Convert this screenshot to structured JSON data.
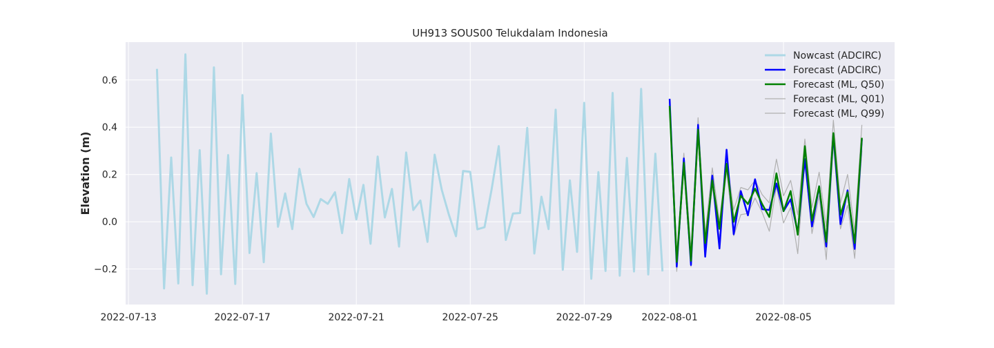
{
  "chart_data": {
    "type": "line",
    "title": "UH913 SOUS00 Telukdalam Indonesia",
    "ylabel": "Elevation (m)",
    "xlabel": "",
    "xlim": [
      "2022-07-13",
      "2022-08-09"
    ],
    "ylim": [
      -0.35,
      0.76
    ],
    "grid": true,
    "legend_position": "top-right",
    "x_ticks": [
      "2022-07-13",
      "2022-07-17",
      "2022-07-21",
      "2022-07-25",
      "2022-07-29",
      "2022-08-01",
      "2022-08-05"
    ],
    "y_ticks": [
      -0.2,
      0.0,
      0.2,
      0.4,
      0.6
    ],
    "y_tick_labels": [
      "−0.2",
      "0.0",
      "0.2",
      "0.4",
      "0.6"
    ],
    "colors": {
      "background": "#eaeaf2",
      "grid": "#ffffff",
      "nowcast": "#add8e6",
      "forecast_adcirc": "#0000ff",
      "forecast_ml_q50": "#008000",
      "forecast_ml_q01": "#b0b0b0",
      "forecast_ml_q99": "#b0b0b0"
    },
    "series": [
      {
        "name": "Nowcast (ADCIRC)",
        "points": [
          [
            "2022-07-14 00:00",
            0.647
          ],
          [
            "2022-07-14 06:00",
            -0.282
          ],
          [
            "2022-07-14 12:00",
            0.272
          ],
          [
            "2022-07-14 18:00",
            -0.261
          ],
          [
            "2022-07-15 00:00",
            0.708
          ],
          [
            "2022-07-15 06:00",
            -0.268
          ],
          [
            "2022-07-15 12:00",
            0.303
          ],
          [
            "2022-07-15 18:00",
            -0.304
          ],
          [
            "2022-07-16 00:00",
            0.653
          ],
          [
            "2022-07-16 06:00",
            -0.222
          ],
          [
            "2022-07-16 12:00",
            0.282
          ],
          [
            "2022-07-16 18:00",
            -0.263
          ],
          [
            "2022-07-17 00:00",
            0.536
          ],
          [
            "2022-07-17 06:00",
            -0.132
          ],
          [
            "2022-07-17 12:00",
            0.206
          ],
          [
            "2022-07-17 18:00",
            -0.171
          ],
          [
            "2022-07-18 00:00",
            0.373
          ],
          [
            "2022-07-18 06:00",
            -0.021
          ],
          [
            "2022-07-18 12:00",
            0.12
          ],
          [
            "2022-07-18 18:00",
            -0.031
          ],
          [
            "2022-07-19 00:00",
            0.224
          ],
          [
            "2022-07-19 06:00",
            0.076
          ],
          [
            "2022-07-19 12:00",
            0.02
          ],
          [
            "2022-07-19 18:00",
            0.096
          ],
          [
            "2022-07-20 00:00",
            0.076
          ],
          [
            "2022-07-20 06:00",
            0.125
          ],
          [
            "2022-07-20 12:00",
            -0.048
          ],
          [
            "2022-07-20 18:00",
            0.181
          ],
          [
            "2022-07-21 00:00",
            0.01
          ],
          [
            "2022-07-21 06:00",
            0.156
          ],
          [
            "2022-07-21 12:00",
            -0.093
          ],
          [
            "2022-07-21 18:00",
            0.276
          ],
          [
            "2022-07-22 00:00",
            0.018
          ],
          [
            "2022-07-22 06:00",
            0.139
          ],
          [
            "2022-07-22 12:00",
            -0.105
          ],
          [
            "2022-07-22 18:00",
            0.293
          ],
          [
            "2022-07-23 00:00",
            0.05
          ],
          [
            "2022-07-23 06:00",
            0.09
          ],
          [
            "2022-07-23 12:00",
            -0.085
          ],
          [
            "2022-07-23 18:00",
            0.284
          ],
          [
            "2022-07-24 00:00",
            0.135
          ],
          [
            "2022-07-24 06:00",
            0.03
          ],
          [
            "2022-07-24 12:00",
            -0.061
          ],
          [
            "2022-07-24 18:00",
            0.215
          ],
          [
            "2022-07-25 00:00",
            0.211
          ],
          [
            "2022-07-25 06:00",
            -0.032
          ],
          [
            "2022-07-25 12:00",
            -0.023
          ],
          [
            "2022-07-25 18:00",
            0.137
          ],
          [
            "2022-07-26 00:00",
            0.32
          ],
          [
            "2022-07-26 06:00",
            -0.077
          ],
          [
            "2022-07-26 12:00",
            0.035
          ],
          [
            "2022-07-26 18:00",
            0.037
          ],
          [
            "2022-07-27 00:00",
            0.397
          ],
          [
            "2022-07-27 06:00",
            -0.134
          ],
          [
            "2022-07-27 12:00",
            0.106
          ],
          [
            "2022-07-27 18:00",
            -0.031
          ],
          [
            "2022-07-28 00:00",
            0.474
          ],
          [
            "2022-07-28 06:00",
            -0.203
          ],
          [
            "2022-07-28 12:00",
            0.175
          ],
          [
            "2022-07-28 18:00",
            -0.127
          ],
          [
            "2022-07-29 00:00",
            0.503
          ],
          [
            "2022-07-29 06:00",
            -0.241
          ],
          [
            "2022-07-29 12:00",
            0.21
          ],
          [
            "2022-07-29 18:00",
            -0.208
          ],
          [
            "2022-07-30 00:00",
            0.545
          ],
          [
            "2022-07-30 06:00",
            -0.228
          ],
          [
            "2022-07-30 12:00",
            0.27
          ],
          [
            "2022-07-30 18:00",
            -0.21
          ],
          [
            "2022-07-31 00:00",
            0.562
          ],
          [
            "2022-07-31 06:00",
            -0.223
          ],
          [
            "2022-07-31 12:00",
            0.288
          ],
          [
            "2022-07-31 18:00",
            -0.21
          ]
        ]
      },
      {
        "name": "Forecast (ADCIRC)",
        "points": [
          [
            "2022-08-01 00:00",
            0.52
          ],
          [
            "2022-08-01 06:00",
            -0.19
          ],
          [
            "2022-08-01 12:00",
            0.268
          ],
          [
            "2022-08-01 18:00",
            -0.183
          ],
          [
            "2022-08-02 00:00",
            0.41
          ],
          [
            "2022-08-02 06:00",
            -0.148
          ],
          [
            "2022-08-02 12:00",
            0.195
          ],
          [
            "2022-08-02 18:00",
            -0.113
          ],
          [
            "2022-08-03 00:00",
            0.305
          ],
          [
            "2022-08-03 06:00",
            -0.053
          ],
          [
            "2022-08-03 12:00",
            0.13
          ],
          [
            "2022-08-03 18:00",
            0.027
          ],
          [
            "2022-08-04 00:00",
            0.18
          ],
          [
            "2022-08-04 06:00",
            0.053
          ],
          [
            "2022-08-04 12:00",
            0.05
          ],
          [
            "2022-08-04 18:00",
            0.162
          ],
          [
            "2022-08-05 00:00",
            0.045
          ],
          [
            "2022-08-05 06:00",
            0.095
          ],
          [
            "2022-08-05 12:00",
            -0.045
          ],
          [
            "2022-08-05 18:00",
            0.265
          ],
          [
            "2022-08-06 00:00",
            -0.02
          ],
          [
            "2022-08-06 06:00",
            0.15
          ],
          [
            "2022-08-06 12:00",
            -0.105
          ],
          [
            "2022-08-06 18:00",
            0.37
          ],
          [
            "2022-08-07 00:00",
            -0.01
          ],
          [
            "2022-08-07 06:00",
            0.133
          ],
          [
            "2022-08-07 12:00",
            -0.115
          ],
          [
            "2022-08-07 18:00",
            0.35
          ]
        ]
      },
      {
        "name": "Forecast (ML, Q50)",
        "points": [
          [
            "2022-08-01 00:00",
            0.49
          ],
          [
            "2022-08-01 06:00",
            -0.17
          ],
          [
            "2022-08-01 12:00",
            0.25
          ],
          [
            "2022-08-01 18:00",
            -0.165
          ],
          [
            "2022-08-02 00:00",
            0.39
          ],
          [
            "2022-08-02 06:00",
            -0.09
          ],
          [
            "2022-08-02 12:00",
            0.175
          ],
          [
            "2022-08-02 18:00",
            -0.03
          ],
          [
            "2022-08-03 00:00",
            0.245
          ],
          [
            "2022-08-03 06:00",
            0.0
          ],
          [
            "2022-08-03 12:00",
            0.11
          ],
          [
            "2022-08-03 18:00",
            0.075
          ],
          [
            "2022-08-04 00:00",
            0.14
          ],
          [
            "2022-08-04 06:00",
            0.075
          ],
          [
            "2022-08-04 12:00",
            0.02
          ],
          [
            "2022-08-04 18:00",
            0.205
          ],
          [
            "2022-08-05 00:00",
            0.045
          ],
          [
            "2022-08-05 06:00",
            0.13
          ],
          [
            "2022-08-05 12:00",
            -0.055
          ],
          [
            "2022-08-05 18:00",
            0.32
          ],
          [
            "2022-08-06 00:00",
            0.005
          ],
          [
            "2022-08-06 06:00",
            0.15
          ],
          [
            "2022-08-06 12:00",
            -0.085
          ],
          [
            "2022-08-06 18:00",
            0.375
          ],
          [
            "2022-08-07 00:00",
            0.03
          ],
          [
            "2022-08-07 06:00",
            0.125
          ],
          [
            "2022-08-07 12:00",
            -0.09
          ],
          [
            "2022-08-07 18:00",
            0.355
          ]
        ]
      },
      {
        "name": "Forecast (ML, Q01)",
        "points": [
          [
            "2022-08-01 00:00",
            0.47
          ],
          [
            "2022-08-01 06:00",
            -0.21
          ],
          [
            "2022-08-01 12:00",
            0.23
          ],
          [
            "2022-08-01 18:00",
            -0.19
          ],
          [
            "2022-08-02 00:00",
            0.36
          ],
          [
            "2022-08-02 06:00",
            -0.13
          ],
          [
            "2022-08-02 12:00",
            0.15
          ],
          [
            "2022-08-02 18:00",
            -0.07
          ],
          [
            "2022-08-03 00:00",
            0.22
          ],
          [
            "2022-08-03 06:00",
            -0.06
          ],
          [
            "2022-08-03 12:00",
            0.03
          ],
          [
            "2022-08-03 18:00",
            0.035
          ],
          [
            "2022-08-04 00:00",
            0.1
          ],
          [
            "2022-08-04 06:00",
            0.04
          ],
          [
            "2022-08-04 12:00",
            -0.04
          ],
          [
            "2022-08-04 18:00",
            0.15
          ],
          [
            "2022-08-05 00:00",
            -0.005
          ],
          [
            "2022-08-05 06:00",
            0.06
          ],
          [
            "2022-08-05 12:00",
            -0.135
          ],
          [
            "2022-08-05 18:00",
            0.26
          ],
          [
            "2022-08-06 00:00",
            -0.05
          ],
          [
            "2022-08-06 06:00",
            0.11
          ],
          [
            "2022-08-06 12:00",
            -0.16
          ],
          [
            "2022-08-06 18:00",
            0.33
          ],
          [
            "2022-08-07 00:00",
            -0.03
          ],
          [
            "2022-08-07 06:00",
            0.07
          ],
          [
            "2022-08-07 12:00",
            -0.155
          ],
          [
            "2022-08-07 18:00",
            0.3
          ]
        ]
      },
      {
        "name": "Forecast (ML, Q99)",
        "points": [
          [
            "2022-08-01 00:00",
            0.51
          ],
          [
            "2022-08-01 06:00",
            -0.14
          ],
          [
            "2022-08-01 12:00",
            0.29
          ],
          [
            "2022-08-01 18:00",
            -0.12
          ],
          [
            "2022-08-02 00:00",
            0.44
          ],
          [
            "2022-08-02 06:00",
            -0.05
          ],
          [
            "2022-08-02 12:00",
            0.228
          ],
          [
            "2022-08-02 18:00",
            0.0
          ],
          [
            "2022-08-03 00:00",
            0.27
          ],
          [
            "2022-08-03 06:00",
            0.05
          ],
          [
            "2022-08-03 12:00",
            0.145
          ],
          [
            "2022-08-03 18:00",
            0.135
          ],
          [
            "2022-08-04 00:00",
            0.175
          ],
          [
            "2022-08-04 06:00",
            0.115
          ],
          [
            "2022-08-04 12:00",
            0.08
          ],
          [
            "2022-08-04 18:00",
            0.265
          ],
          [
            "2022-08-05 00:00",
            0.11
          ],
          [
            "2022-08-05 06:00",
            0.175
          ],
          [
            "2022-08-05 12:00",
            0.03
          ],
          [
            "2022-08-05 18:00",
            0.35
          ],
          [
            "2022-08-06 00:00",
            0.06
          ],
          [
            "2022-08-06 06:00",
            0.21
          ],
          [
            "2022-08-06 12:00",
            -0.02
          ],
          [
            "2022-08-06 18:00",
            0.43
          ],
          [
            "2022-08-07 00:00",
            0.08
          ],
          [
            "2022-08-07 06:00",
            0.2
          ],
          [
            "2022-08-07 12:00",
            -0.04
          ],
          [
            "2022-08-07 18:00",
            0.41
          ]
        ]
      }
    ]
  }
}
